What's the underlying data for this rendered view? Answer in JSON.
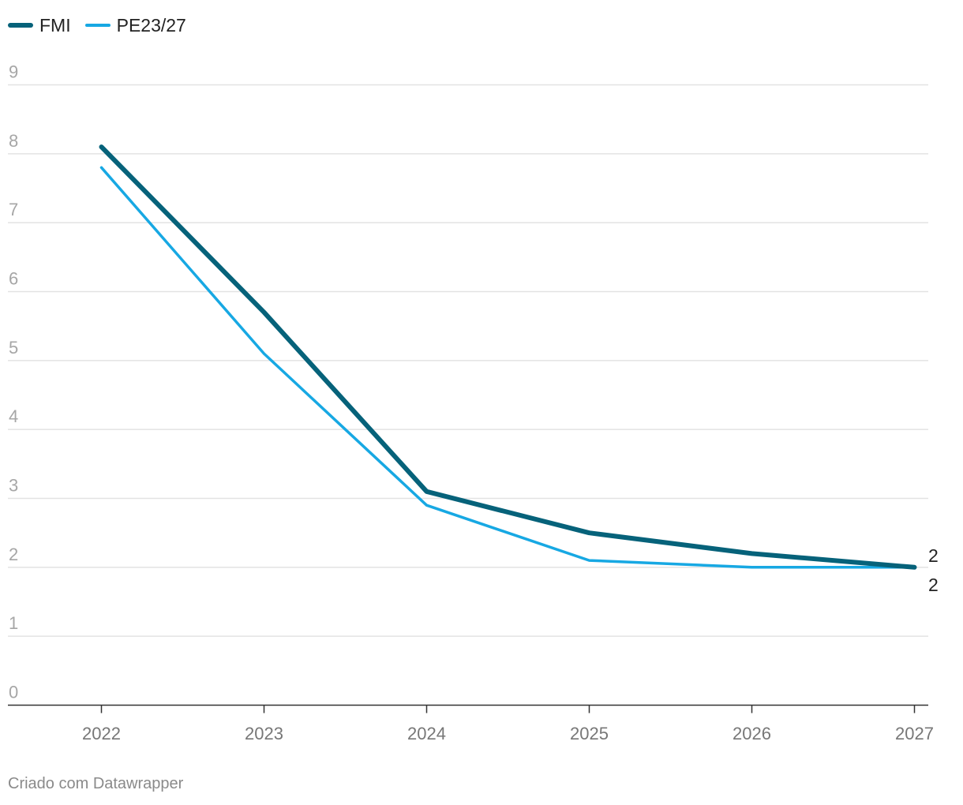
{
  "legend": {
    "items": [
      {
        "label": "FMI",
        "color": "#06627a"
      },
      {
        "label": "PE23/27",
        "color": "#17a8e3"
      }
    ]
  },
  "footer": {
    "credit": "Criado com Datawrapper"
  },
  "chart_data": {
    "type": "line",
    "x": [
      "2022",
      "2023",
      "2024",
      "2025",
      "2026",
      "2027"
    ],
    "series": [
      {
        "name": "FMI",
        "values": [
          8.1,
          5.7,
          3.1,
          2.5,
          2.2,
          2.0
        ],
        "color": "#06627a",
        "end_label": "2"
      },
      {
        "name": "PE23/27",
        "values": [
          7.8,
          5.1,
          2.9,
          2.1,
          2.0,
          2.0
        ],
        "color": "#17a8e3",
        "end_label": "2"
      }
    ],
    "y_ticks": [
      "0",
      "1",
      "2",
      "3",
      "4",
      "5",
      "6",
      "7",
      "8",
      "9"
    ],
    "ylim": [
      0,
      9
    ],
    "grid": true,
    "legend_position": "top-left"
  }
}
